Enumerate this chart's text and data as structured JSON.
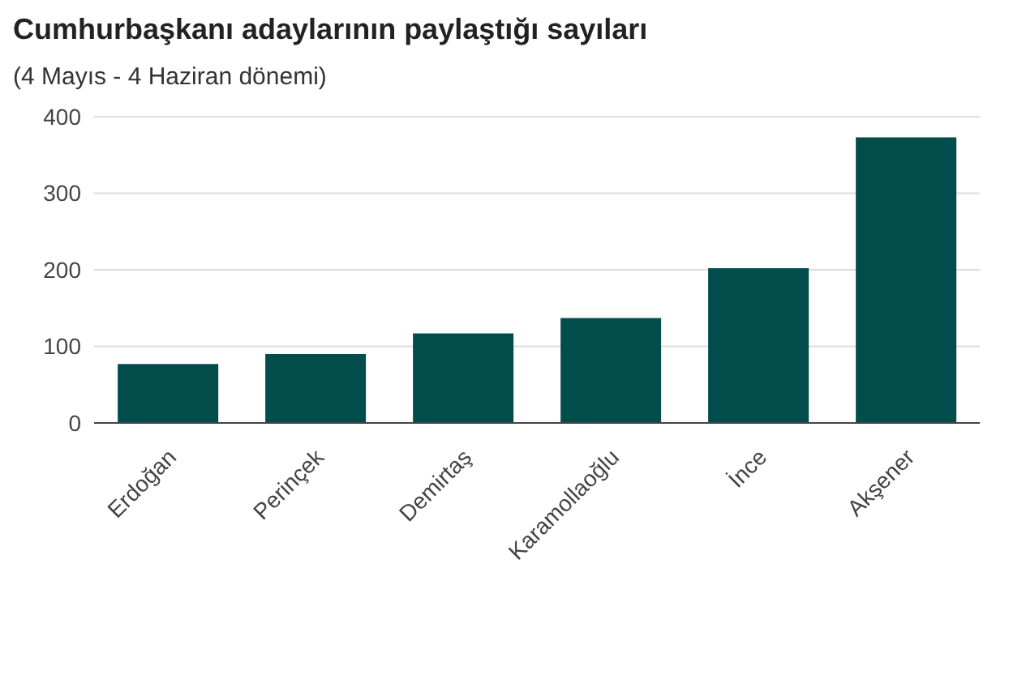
{
  "chart_data": {
    "type": "bar",
    "title": "Cumhurbaşkanı adaylarının paylaştığı sayıları",
    "subtitle": "(4 Mayıs - 4 Haziran dönemi)",
    "categories": [
      "Erdoğan",
      "Perinçek",
      "Demirtaş",
      "Karamollaoğlu",
      "İnce",
      "Akşener"
    ],
    "values": [
      77,
      90,
      117,
      137,
      202,
      373
    ],
    "color": "#034c4c",
    "ylim": [
      0,
      400
    ],
    "yticks": [
      0,
      100,
      200,
      300,
      400
    ],
    "grid": "y"
  }
}
